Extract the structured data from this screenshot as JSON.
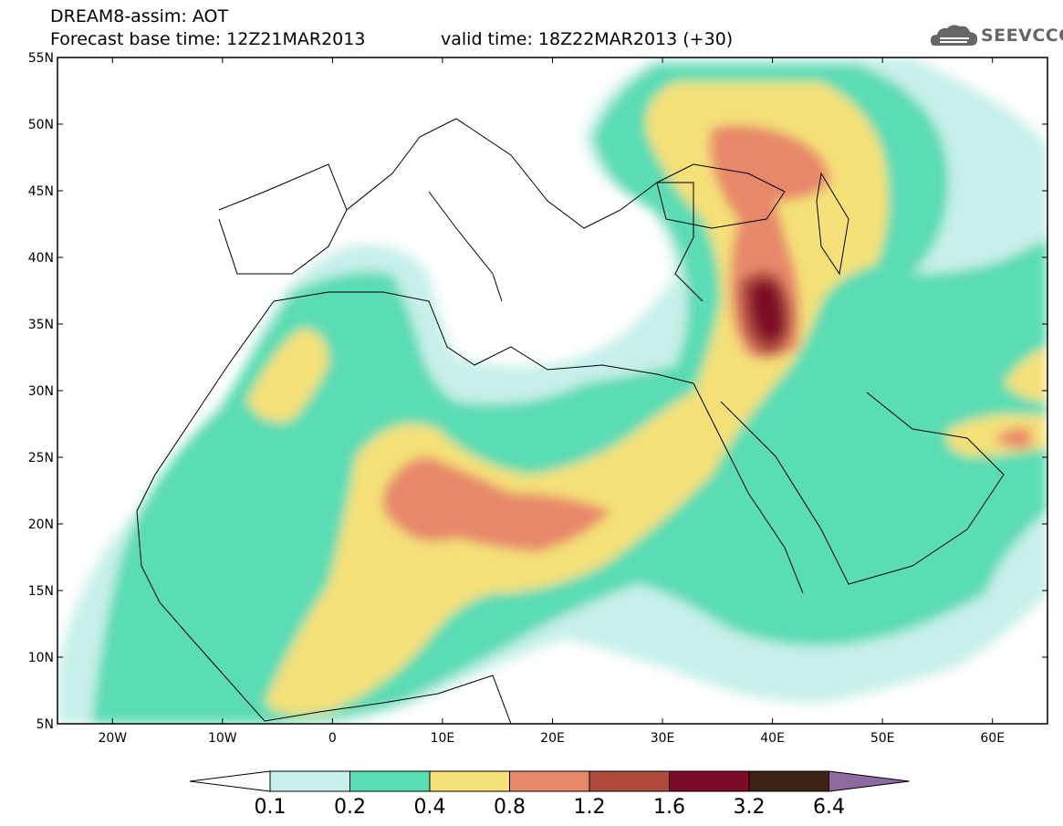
{
  "header": {
    "title_line1": "DREAM8-assim: AOT",
    "base_time_label": "Forecast base time: 12Z21MAR2013",
    "valid_time_label": "valid time: 18Z22MAR2013 (+30)"
  },
  "logo": {
    "text": "SEEVCCC",
    "icon": "cloud-icon"
  },
  "map": {
    "lon_range": [
      -25,
      65
    ],
    "lat_range": [
      5,
      55
    ],
    "lat_ticks": [
      "5N",
      "10N",
      "15N",
      "20N",
      "25N",
      "30N",
      "35N",
      "40N",
      "45N",
      "50N",
      "55N"
    ],
    "lon_ticks": [
      "20W",
      "10W",
      "0",
      "10E",
      "20E",
      "30E",
      "40E",
      "50E",
      "60E"
    ]
  },
  "colorbar": {
    "labels": [
      "0.1",
      "0.2",
      "0.4",
      "0.8",
      "1.2",
      "1.6",
      "3.2",
      "6.4"
    ],
    "colors": [
      "#c8f0ea",
      "#5adcb4",
      "#f5e178",
      "#e8886a",
      "#b04a3c",
      "#7d0a28",
      "#3c2414",
      "#8e6aa0"
    ]
  }
}
